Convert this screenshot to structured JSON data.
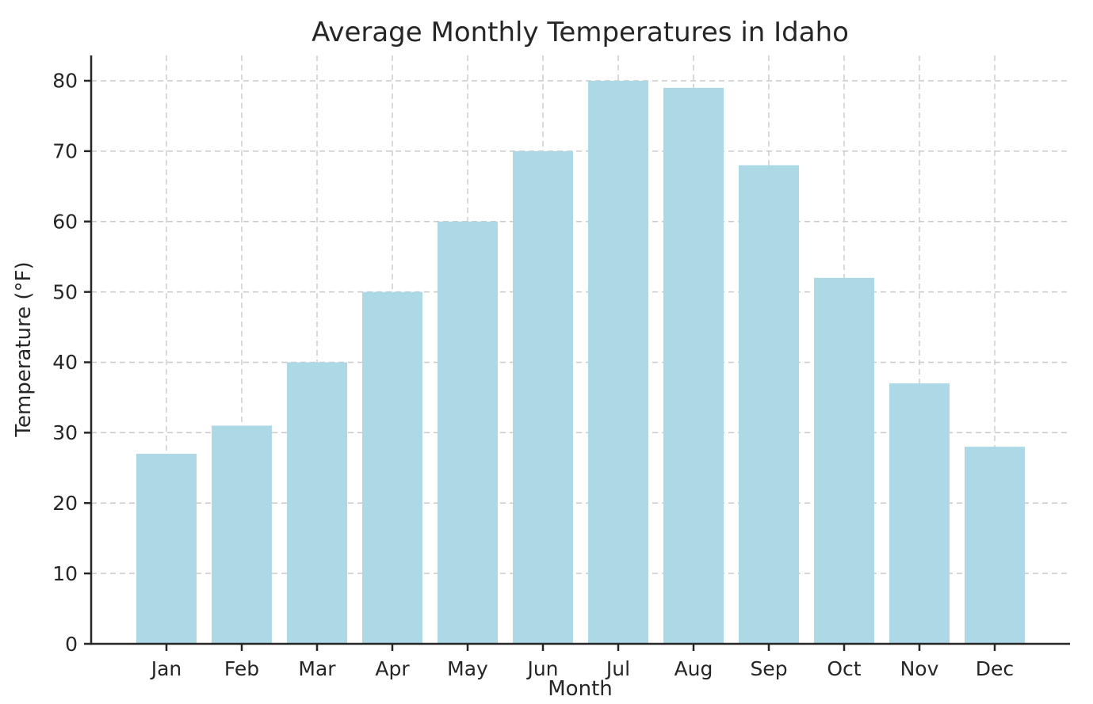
{
  "chart_data": {
    "type": "bar",
    "title": "Average Monthly Temperatures in Idaho",
    "xlabel": "Month",
    "ylabel": "Temperature (°F)",
    "categories": [
      "Jan",
      "Feb",
      "Mar",
      "Apr",
      "May",
      "Jun",
      "Jul",
      "Aug",
      "Sep",
      "Oct",
      "Nov",
      "Dec"
    ],
    "values": [
      27,
      31,
      40,
      50,
      60,
      70,
      80,
      79,
      68,
      52,
      37,
      28
    ],
    "yticks": [
      0,
      10,
      20,
      30,
      40,
      50,
      60,
      70,
      80
    ],
    "ylim": [
      0,
      83.6
    ],
    "grid": true,
    "legend": "none",
    "colors": {
      "bar_fill": "#ADD8E6",
      "grid_line": "#c9c9c9",
      "axis_line": "#262626",
      "text": "#262626",
      "background": "#ffffff"
    }
  }
}
